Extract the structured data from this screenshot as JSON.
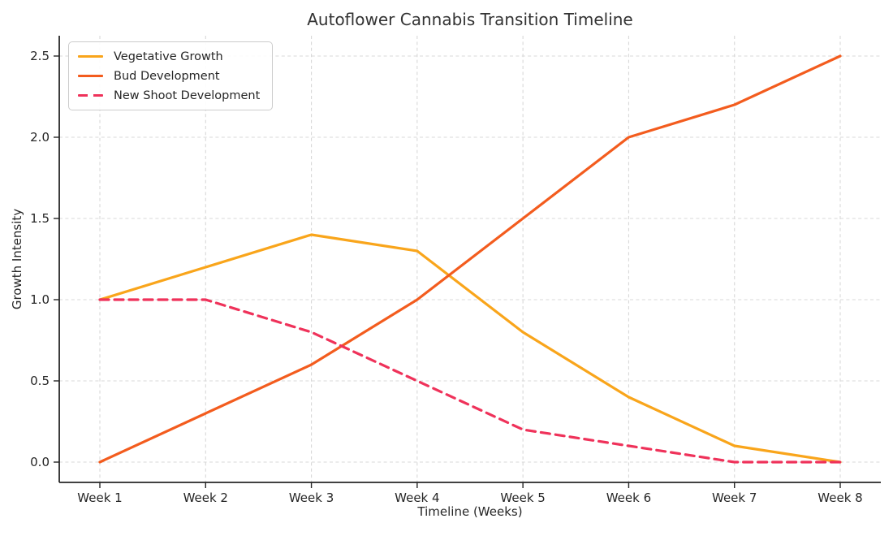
{
  "chart_data": {
    "type": "line",
    "title": "Autoflower Cannabis Transition Timeline",
    "xlabel": "Timeline (Weeks)",
    "ylabel": "Growth Intensity",
    "categories": [
      "Week 1",
      "Week 2",
      "Week 3",
      "Week 4",
      "Week 5",
      "Week 6",
      "Week 7",
      "Week 8"
    ],
    "yticks": [
      "0.0",
      "0.5",
      "1.0",
      "1.5",
      "2.0",
      "2.5"
    ],
    "ylim": [
      0,
      2.5
    ],
    "grid": true,
    "legend_position": "upper-left",
    "series": [
      {
        "name": "Vegetative Growth",
        "color": "#F9A51B",
        "style": "solid",
        "values": [
          1.0,
          1.2,
          1.4,
          1.3,
          0.8,
          0.4,
          0.1,
          0.0
        ]
      },
      {
        "name": "Bud Development",
        "color": "#F35C1E",
        "style": "solid",
        "values": [
          0.0,
          0.3,
          0.6,
          1.0,
          1.5,
          2.0,
          2.2,
          2.5
        ]
      },
      {
        "name": "New Shoot Development",
        "color": "#EF325A",
        "style": "dashed",
        "values": [
          1.0,
          1.0,
          0.8,
          0.5,
          0.2,
          0.1,
          0.0,
          0.0
        ]
      }
    ]
  },
  "colors": {
    "axis": "#262626",
    "grid": "#d8d8d8",
    "title": "#333333"
  }
}
